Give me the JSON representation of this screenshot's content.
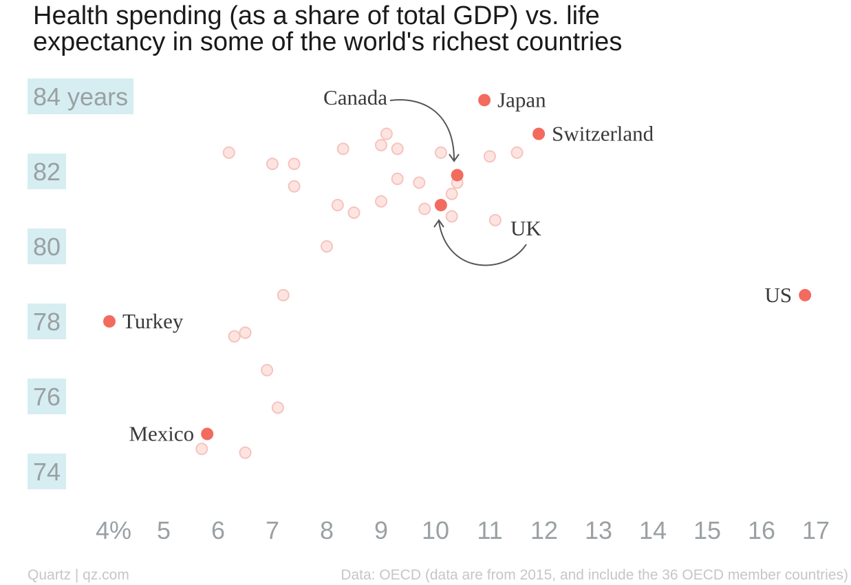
{
  "title_lines": [
    "Health spending (as a share of total GDP) vs. life",
    "expectancy in some of the world's richest countries"
  ],
  "footer": {
    "source_left": "Quartz | qz.com",
    "source_right": "Data: OECD (data are from 2015, and include the 36 OECD member countries)"
  },
  "colors": {
    "highlight": "#f26b5e",
    "background_point_fill": "#fde4e1",
    "background_point_stroke": "#f6c3bd",
    "ytick_background": "#d6eef1",
    "tick_text": "#9aa0a3"
  },
  "chart_data": {
    "type": "scatter",
    "x_unit": "Health spending, % of GDP",
    "y_unit": "Life expectancy, years",
    "xlim": [
      3.7,
      17.2
    ],
    "ylim": [
      73,
      85
    ],
    "x_ticks": [
      {
        "value": 4,
        "label": "4%"
      },
      {
        "value": 5,
        "label": "5"
      },
      {
        "value": 6,
        "label": "6"
      },
      {
        "value": 7,
        "label": "7"
      },
      {
        "value": 8,
        "label": "8"
      },
      {
        "value": 9,
        "label": "9"
      },
      {
        "value": 10,
        "label": "10"
      },
      {
        "value": 11,
        "label": "11"
      },
      {
        "value": 12,
        "label": "12"
      },
      {
        "value": 13,
        "label": "13"
      },
      {
        "value": 14,
        "label": "14"
      },
      {
        "value": 15,
        "label": "15"
      },
      {
        "value": 16,
        "label": "16"
      },
      {
        "value": 17,
        "label": "17"
      }
    ],
    "y_ticks": [
      {
        "value": 84,
        "label": "84 years"
      },
      {
        "value": 82,
        "label": "82"
      },
      {
        "value": 80,
        "label": "80"
      },
      {
        "value": 78,
        "label": "78"
      },
      {
        "value": 76,
        "label": "76"
      },
      {
        "value": 74,
        "label": "74"
      }
    ],
    "grid": false,
    "legend": "none",
    "highlighted": [
      {
        "name": "Japan",
        "x": 10.9,
        "y": 83.9,
        "label_side": "right"
      },
      {
        "name": "Switzerland",
        "x": 11.9,
        "y": 83.0,
        "label_side": "right"
      },
      {
        "name": "Canada",
        "x": 10.4,
        "y": 81.9,
        "label_side": "annotation-top"
      },
      {
        "name": "UK",
        "x": 10.1,
        "y": 81.1,
        "label_side": "annotation-bottom"
      },
      {
        "name": "US",
        "x": 16.8,
        "y": 78.7,
        "label_side": "left"
      },
      {
        "name": "Turkey",
        "x": 4.0,
        "y": 78.0,
        "label_side": "right"
      },
      {
        "name": "Mexico",
        "x": 5.8,
        "y": 75.0,
        "label_side": "left"
      }
    ],
    "others": [
      {
        "x": 6.2,
        "y": 82.5
      },
      {
        "x": 7.0,
        "y": 82.2
      },
      {
        "x": 7.4,
        "y": 82.2
      },
      {
        "x": 7.4,
        "y": 81.6
      },
      {
        "x": 8.3,
        "y": 82.6
      },
      {
        "x": 9.0,
        "y": 82.7
      },
      {
        "x": 9.1,
        "y": 83.0
      },
      {
        "x": 9.3,
        "y": 82.6
      },
      {
        "x": 10.1,
        "y": 82.5
      },
      {
        "x": 11.0,
        "y": 82.4
      },
      {
        "x": 11.5,
        "y": 82.5
      },
      {
        "x": 9.3,
        "y": 81.8
      },
      {
        "x": 9.7,
        "y": 81.7
      },
      {
        "x": 10.4,
        "y": 81.7
      },
      {
        "x": 10.3,
        "y": 81.4
      },
      {
        "x": 8.2,
        "y": 81.1
      },
      {
        "x": 9.0,
        "y": 81.2
      },
      {
        "x": 8.5,
        "y": 80.9
      },
      {
        "x": 9.8,
        "y": 81.0
      },
      {
        "x": 10.3,
        "y": 80.8
      },
      {
        "x": 11.1,
        "y": 80.7
      },
      {
        "x": 8.0,
        "y": 80.0
      },
      {
        "x": 7.2,
        "y": 78.7
      },
      {
        "x": 6.3,
        "y": 77.6
      },
      {
        "x": 6.5,
        "y": 77.7
      },
      {
        "x": 6.9,
        "y": 76.7
      },
      {
        "x": 7.1,
        "y": 75.7
      },
      {
        "x": 5.7,
        "y": 74.6
      },
      {
        "x": 6.5,
        "y": 74.5
      }
    ]
  }
}
